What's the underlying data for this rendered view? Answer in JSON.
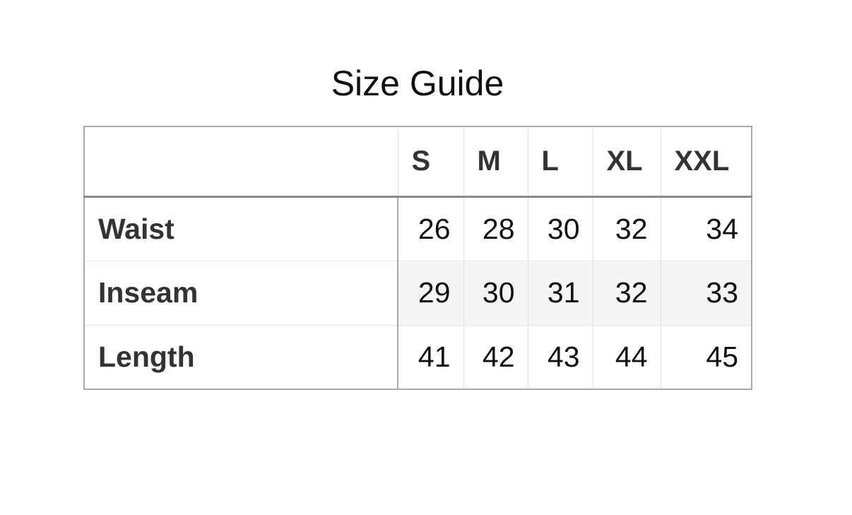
{
  "title": "Size Guide",
  "table": {
    "headers": [
      "S",
      "M",
      "L",
      "XL",
      "XXL"
    ],
    "rows": [
      {
        "label": "Waist",
        "values": [
          "26",
          "28",
          "30",
          "32",
          "34"
        ]
      },
      {
        "label": "Inseam",
        "values": [
          "29",
          "30",
          "31",
          "32",
          "33"
        ]
      },
      {
        "label": "Length",
        "values": [
          "41",
          "42",
          "43",
          "44",
          "45"
        ]
      }
    ],
    "shaded_row_color": "#f3f6f5"
  }
}
